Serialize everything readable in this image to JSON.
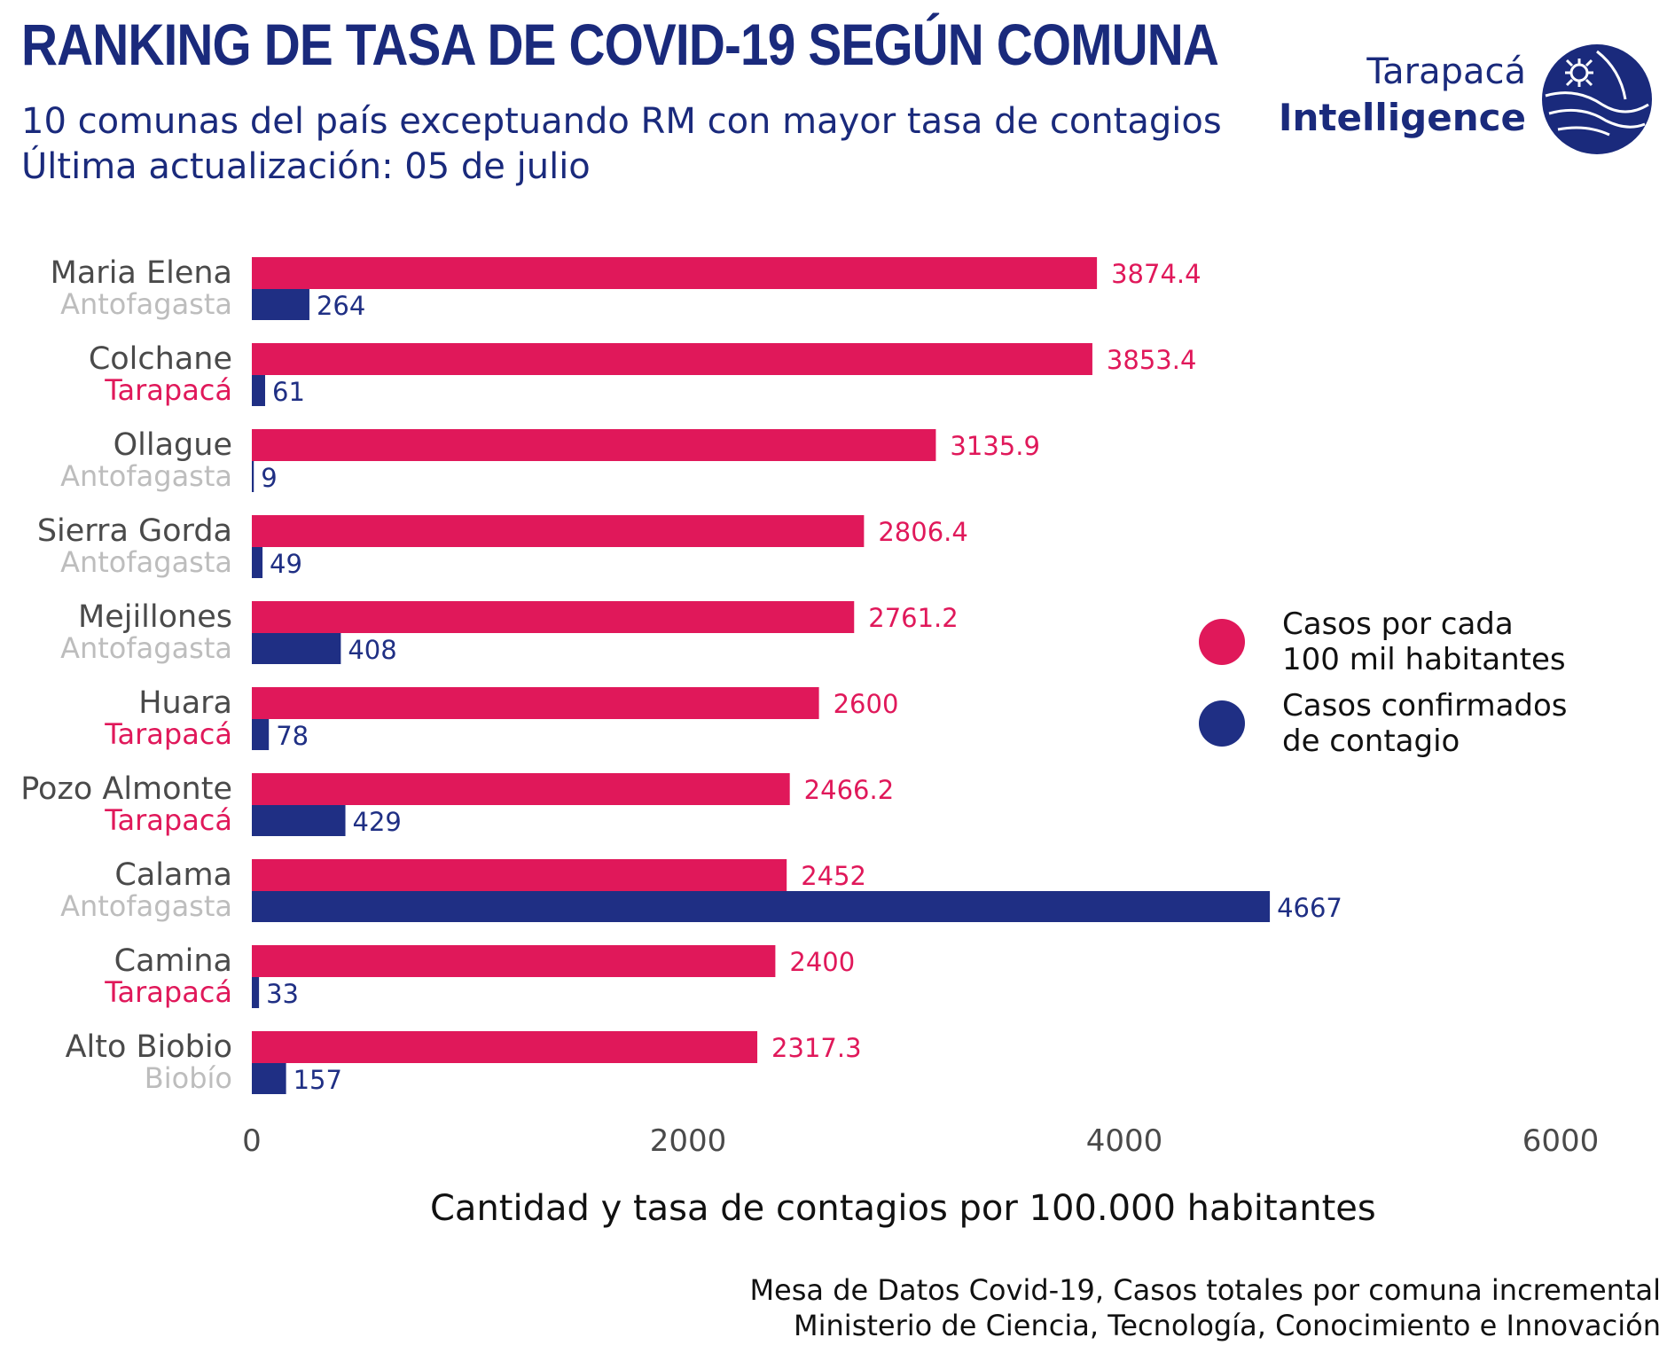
{
  "header": {
    "title": "RANKING DE TASA DE COVID-19 SEGÚN COMUNA",
    "subtitle_line1": "10 comunas del país exceptuando RM con mayor tasa de contagios",
    "subtitle_line2": "Última actualización: 05 de julio"
  },
  "logo": {
    "line1": "Tarapacá",
    "line2": "Intelligence",
    "icon": "globe-logo-icon"
  },
  "colors": {
    "rate": "#e0185a",
    "cases": "#1f2f84",
    "region_highlight": "#e0185a",
    "region_muted": "#bdbdbd",
    "axis_text": "#4a4a4a",
    "title": "#1a2a7c"
  },
  "legend": {
    "rate_label_line1": "Casos por cada",
    "rate_label_line2": "100 mil habitantes",
    "cases_label_line1": "Casos confirmados",
    "cases_label_line2": "de contagio"
  },
  "source": {
    "line1": "Mesa de Datos Covid-19, Casos totales por comuna incremental",
    "line2": "Ministerio de Ciencia, Tecnología, Conocimiento e Innovación"
  },
  "chart_data": {
    "type": "bar",
    "orientation": "horizontal",
    "categories": [
      "Maria Elena",
      "Colchane",
      "Ollague",
      "Sierra Gorda",
      "Mejillones",
      "Huara",
      "Pozo Almonte",
      "Calama",
      "Camina",
      "Alto Biobio"
    ],
    "regions": [
      "Antofagasta",
      "Tarapacá",
      "Antofagasta",
      "Antofagasta",
      "Antofagasta",
      "Tarapacá",
      "Tarapacá",
      "Antofagasta",
      "Tarapacá",
      "Biobío"
    ],
    "series": [
      {
        "name": "Casos por cada 100 mil habitantes",
        "values": [
          3874.4,
          3853.4,
          3135.9,
          2806.4,
          2761.2,
          2600,
          2466.2,
          2452,
          2400,
          2317.3
        ]
      },
      {
        "name": "Casos confirmados de contagio",
        "values": [
          264,
          61,
          9,
          49,
          408,
          78,
          429,
          4667,
          33,
          157
        ]
      }
    ],
    "value_labels": {
      "rate": [
        "3874.4",
        "3853.4",
        "3135.9",
        "2806.4",
        "2761.2",
        "2600",
        "2466.2",
        "2452",
        "2400",
        "2317.3"
      ],
      "cases": [
        "264",
        "61",
        "9",
        "49",
        "408",
        "78",
        "429",
        "4667",
        "33",
        "157"
      ]
    },
    "xlabel": "Cantidad y tasa de contagios por 100.000 habitantes",
    "ylabel": "",
    "xlim": [
      0,
      6000
    ],
    "xticks": [
      0,
      2000,
      4000,
      6000
    ],
    "xtick_labels": [
      "0",
      "2000",
      "4000",
      "6000"
    ],
    "grid": false,
    "legend_position": "right"
  }
}
